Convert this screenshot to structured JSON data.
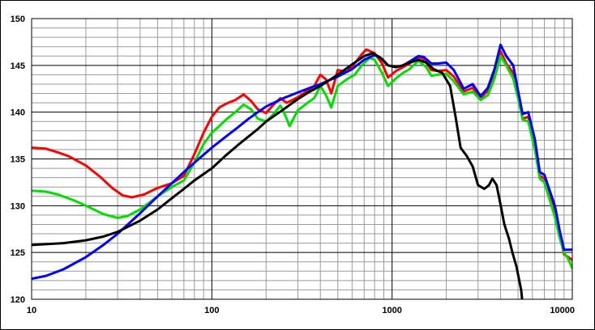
{
  "chart_data": {
    "type": "line",
    "title": "",
    "xlabel": "",
    "ylabel": "",
    "x_scale": "log",
    "xlim": [
      10,
      10000
    ],
    "ylim": [
      120,
      150
    ],
    "grid": true,
    "x_ticks": [
      10,
      100,
      1000,
      10000
    ],
    "x_tick_labels": [
      "10",
      "100",
      "1000",
      "10000"
    ],
    "y_ticks": [
      120,
      125,
      130,
      135,
      140,
      145,
      150
    ],
    "y_tick_labels": [
      "120",
      "125",
      "130",
      "135",
      "140",
      "145",
      "150"
    ],
    "colors": {
      "grid_minor": "#9a9a9a",
      "grid_major": "#000000",
      "red": "#ff0000",
      "green": "#00e000",
      "blue": "#0000ff",
      "black": "#000000"
    },
    "series": [
      {
        "color": "#ff0000",
        "points": [
          [
            10,
            136.2
          ],
          [
            12,
            136.1
          ],
          [
            14,
            135.7
          ],
          [
            16,
            135.3
          ],
          [
            20,
            134.3
          ],
          [
            24,
            133.1
          ],
          [
            28,
            131.9
          ],
          [
            32,
            131.1
          ],
          [
            36,
            130.9
          ],
          [
            42,
            131.2
          ],
          [
            50,
            131.9
          ],
          [
            60,
            132.4
          ],
          [
            70,
            133.2
          ],
          [
            80,
            135.5
          ],
          [
            90,
            137.8
          ],
          [
            100,
            139.5
          ],
          [
            110,
            140.5
          ],
          [
            120,
            140.9
          ],
          [
            135,
            141.3
          ],
          [
            150,
            141.9
          ],
          [
            165,
            141.2
          ],
          [
            180,
            140.3
          ],
          [
            200,
            139.9
          ],
          [
            220,
            140.8
          ],
          [
            240,
            141.5
          ],
          [
            260,
            141.0
          ],
          [
            280,
            141.3
          ],
          [
            300,
            141.6
          ],
          [
            340,
            142.3
          ],
          [
            370,
            142.8
          ],
          [
            400,
            144.0
          ],
          [
            430,
            143.5
          ],
          [
            460,
            142.0
          ],
          [
            500,
            144.5
          ],
          [
            560,
            144.3
          ],
          [
            620,
            145.2
          ],
          [
            680,
            146.2
          ],
          [
            720,
            146.7
          ],
          [
            800,
            146.3
          ],
          [
            880,
            145.2
          ],
          [
            950,
            143.7
          ],
          [
            1050,
            144.4
          ],
          [
            1150,
            144.8
          ],
          [
            1250,
            145.2
          ],
          [
            1400,
            145.9
          ],
          [
            1500,
            145.7
          ],
          [
            1650,
            144.5
          ],
          [
            1800,
            144.4
          ],
          [
            2000,
            144.5
          ],
          [
            2200,
            143.8
          ],
          [
            2500,
            142.2
          ],
          [
            2800,
            142.6
          ],
          [
            3100,
            141.5
          ],
          [
            3400,
            142.3
          ],
          [
            3700,
            144.2
          ],
          [
            4000,
            146.5
          ],
          [
            4300,
            145.2
          ],
          [
            4700,
            144.2
          ],
          [
            5000,
            141.8
          ],
          [
            5300,
            139.3
          ],
          [
            5700,
            139.5
          ],
          [
            6200,
            136.5
          ],
          [
            6600,
            133.2
          ],
          [
            7000,
            132.9
          ],
          [
            7500,
            131.2
          ],
          [
            8000,
            129.5
          ],
          [
            8500,
            127.0
          ],
          [
            9000,
            124.8
          ],
          [
            9500,
            124.5
          ],
          [
            10000,
            124.2
          ]
        ]
      },
      {
        "color": "#00e000",
        "points": [
          [
            10,
            131.6
          ],
          [
            12,
            131.5
          ],
          [
            14,
            131.2
          ],
          [
            17,
            130.6
          ],
          [
            20,
            130.0
          ],
          [
            25,
            129.1
          ],
          [
            30,
            128.7
          ],
          [
            34,
            128.9
          ],
          [
            40,
            129.6
          ],
          [
            50,
            131.0
          ],
          [
            60,
            132.0
          ],
          [
            70,
            132.7
          ],
          [
            80,
            134.6
          ],
          [
            90,
            136.6
          ],
          [
            100,
            137.8
          ],
          [
            110,
            138.5
          ],
          [
            120,
            139.2
          ],
          [
            135,
            140.0
          ],
          [
            150,
            140.8
          ],
          [
            165,
            140.3
          ],
          [
            180,
            139.3
          ],
          [
            200,
            139.0
          ],
          [
            220,
            139.8
          ],
          [
            240,
            140.7
          ],
          [
            255,
            139.7
          ],
          [
            270,
            138.5
          ],
          [
            300,
            140.2
          ],
          [
            340,
            141.0
          ],
          [
            370,
            141.5
          ],
          [
            400,
            142.8
          ],
          [
            430,
            141.8
          ],
          [
            460,
            140.5
          ],
          [
            500,
            142.8
          ],
          [
            560,
            143.5
          ],
          [
            620,
            144.0
          ],
          [
            680,
            145.0
          ],
          [
            750,
            145.8
          ],
          [
            800,
            145.6
          ],
          [
            880,
            144.2
          ],
          [
            950,
            142.8
          ],
          [
            1050,
            143.6
          ],
          [
            1150,
            144.2
          ],
          [
            1250,
            144.6
          ],
          [
            1400,
            145.5
          ],
          [
            1550,
            144.8
          ],
          [
            1650,
            143.9
          ],
          [
            1800,
            144.0
          ],
          [
            2000,
            144.1
          ],
          [
            2200,
            143.3
          ],
          [
            2500,
            141.9
          ],
          [
            2800,
            142.2
          ],
          [
            3100,
            141.3
          ],
          [
            3400,
            141.8
          ],
          [
            3700,
            143.6
          ],
          [
            4000,
            146.0
          ],
          [
            4300,
            145.0
          ],
          [
            4700,
            143.6
          ],
          [
            5000,
            141.5
          ],
          [
            5300,
            139.2
          ],
          [
            5700,
            139.0
          ],
          [
            6200,
            136.0
          ],
          [
            6600,
            132.9
          ],
          [
            7000,
            132.5
          ],
          [
            7500,
            130.6
          ],
          [
            8000,
            128.8
          ],
          [
            8500,
            126.6
          ],
          [
            9000,
            125.0
          ],
          [
            9500,
            124.3
          ],
          [
            10000,
            123.3
          ]
        ]
      },
      {
        "color": "#0000ff",
        "points": [
          [
            10,
            122.2
          ],
          [
            12,
            122.5
          ],
          [
            15,
            123.2
          ],
          [
            20,
            124.5
          ],
          [
            25,
            125.8
          ],
          [
            30,
            127.0
          ],
          [
            40,
            129.2
          ],
          [
            50,
            131.0
          ],
          [
            60,
            132.4
          ],
          [
            70,
            133.6
          ],
          [
            80,
            134.6
          ],
          [
            100,
            136.2
          ],
          [
            120,
            137.4
          ],
          [
            140,
            138.4
          ],
          [
            160,
            139.3
          ],
          [
            180,
            140.0
          ],
          [
            200,
            140.6
          ],
          [
            250,
            141.5
          ],
          [
            300,
            142.1
          ],
          [
            350,
            142.6
          ],
          [
            400,
            143.0
          ],
          [
            500,
            143.8
          ],
          [
            600,
            144.6
          ],
          [
            700,
            145.6
          ],
          [
            800,
            146.1
          ],
          [
            880,
            145.7
          ],
          [
            950,
            145.0
          ],
          [
            1050,
            144.8
          ],
          [
            1150,
            145.0
          ],
          [
            1250,
            145.4
          ],
          [
            1400,
            146.0
          ],
          [
            1500,
            145.9
          ],
          [
            1650,
            145.2
          ],
          [
            1800,
            145.2
          ],
          [
            2000,
            145.3
          ],
          [
            2200,
            144.5
          ],
          [
            2500,
            142.5
          ],
          [
            2800,
            143.0
          ],
          [
            3100,
            141.7
          ],
          [
            3400,
            142.6
          ],
          [
            3700,
            144.6
          ],
          [
            4000,
            147.2
          ],
          [
            4300,
            146.0
          ],
          [
            4700,
            145.0
          ],
          [
            5000,
            142.3
          ],
          [
            5300,
            139.8
          ],
          [
            5700,
            140.0
          ],
          [
            6200,
            137.1
          ],
          [
            6600,
            133.6
          ],
          [
            7000,
            133.3
          ],
          [
            7500,
            131.6
          ],
          [
            8000,
            130.0
          ],
          [
            8500,
            127.4
          ],
          [
            9000,
            125.3
          ],
          [
            9500,
            125.3
          ],
          [
            10000,
            125.3
          ]
        ]
      },
      {
        "color": "#000000",
        "points": [
          [
            10,
            125.8
          ],
          [
            15,
            126.0
          ],
          [
            20,
            126.3
          ],
          [
            25,
            126.7
          ],
          [
            30,
            127.2
          ],
          [
            40,
            128.4
          ],
          [
            50,
            129.6
          ],
          [
            60,
            130.8
          ],
          [
            70,
            131.8
          ],
          [
            80,
            132.7
          ],
          [
            100,
            134.0
          ],
          [
            120,
            135.4
          ],
          [
            140,
            136.5
          ],
          [
            160,
            137.4
          ],
          [
            180,
            138.2
          ],
          [
            200,
            139.0
          ],
          [
            250,
            140.3
          ],
          [
            300,
            141.4
          ],
          [
            350,
            142.2
          ],
          [
            400,
            142.8
          ],
          [
            500,
            144.0
          ],
          [
            600,
            145.1
          ],
          [
            700,
            146.0
          ],
          [
            780,
            146.3
          ],
          [
            850,
            145.9
          ],
          [
            950,
            145.0
          ],
          [
            1050,
            144.8
          ],
          [
            1150,
            145.0
          ],
          [
            1250,
            145.3
          ],
          [
            1400,
            145.6
          ],
          [
            1550,
            145.3
          ],
          [
            1700,
            144.6
          ],
          [
            1900,
            144.2
          ],
          [
            2100,
            142.8
          ],
          [
            2250,
            139.5
          ],
          [
            2400,
            136.2
          ],
          [
            2600,
            135.3
          ],
          [
            2800,
            134.2
          ],
          [
            3000,
            132.2
          ],
          [
            3250,
            131.8
          ],
          [
            3450,
            132.2
          ],
          [
            3600,
            132.9
          ],
          [
            3800,
            132.2
          ],
          [
            4000,
            130.1
          ],
          [
            4200,
            128.0
          ],
          [
            4450,
            126.5
          ],
          [
            4650,
            125.0
          ],
          [
            4900,
            123.5
          ],
          [
            5200,
            121.0
          ],
          [
            5300,
            119.5
          ]
        ]
      }
    ]
  }
}
